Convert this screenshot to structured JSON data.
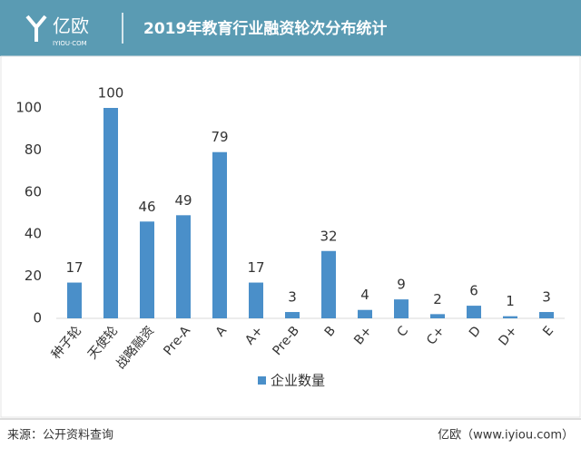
{
  "header": {
    "logo": "亿欧",
    "logo_sub": "IYIOU·COM",
    "title": "2019年教育行业融资轮次分布统计"
  },
  "chart_data": {
    "type": "bar",
    "categories": [
      "种子轮",
      "天使轮",
      "战略融资",
      "Pre-A",
      "A",
      "A+",
      "Pre-B",
      "B",
      "B+",
      "C",
      "C+",
      "D",
      "D+",
      "E"
    ],
    "series": [
      {
        "name": "企业数量",
        "color": "#4a8fc9",
        "values": [
          17,
          100,
          46,
          49,
          79,
          17,
          3,
          32,
          4,
          9,
          2,
          6,
          1,
          3
        ]
      }
    ],
    "ylim": [
      0,
      100
    ],
    "yticks": [
      0,
      20,
      40,
      60,
      80,
      100
    ],
    "grid": false,
    "legend": "bottom"
  },
  "footer": {
    "source": "来源：公开资料查询",
    "site": "亿欧（www.iyiou.com）"
  }
}
